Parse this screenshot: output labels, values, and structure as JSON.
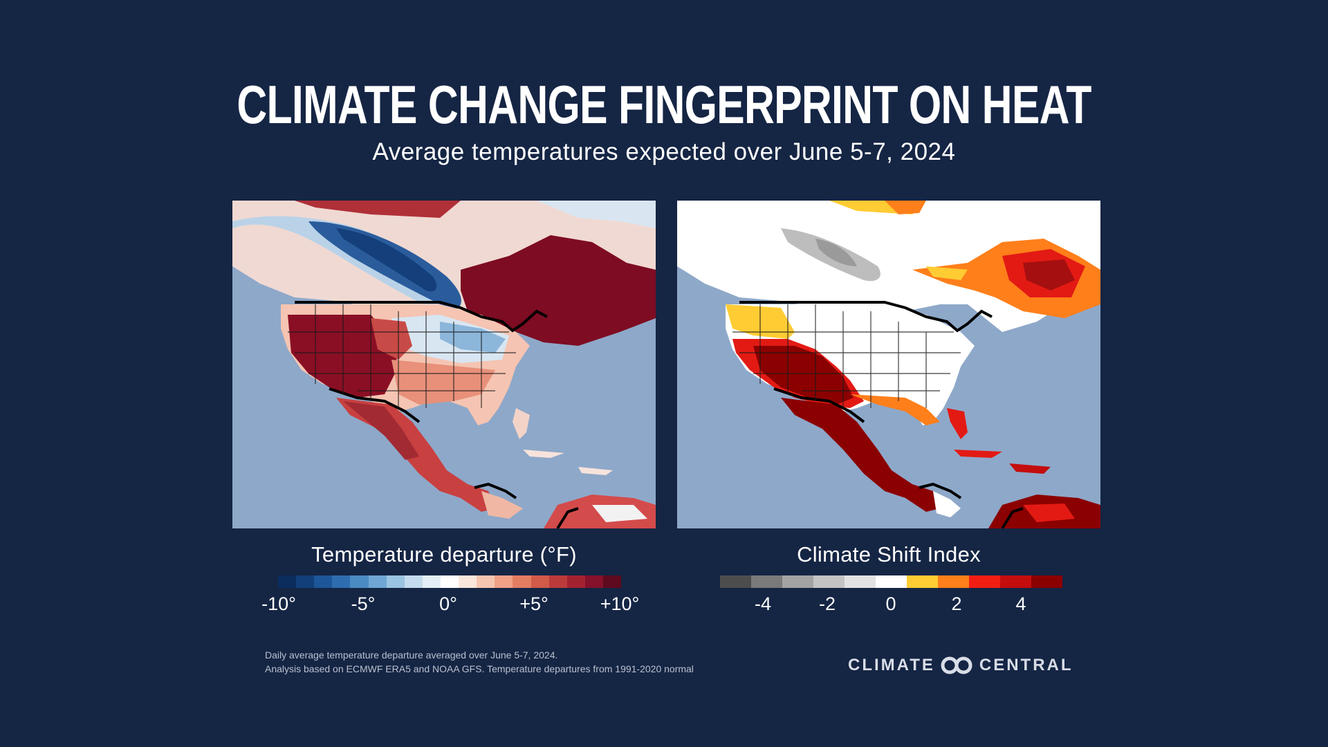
{
  "header": {
    "title": "Climate Change Fingerprint on Heat",
    "subtitle": "Average temperatures expected over June 5-7, 2024"
  },
  "maps": [
    {
      "legend_title": "Temperature departure (°F)",
      "ticks": [
        "-10°",
        "-5°",
        "0°",
        "+5°",
        "+10°"
      ],
      "scale_colors": [
        "#0a2d5e",
        "#123f7a",
        "#1d5699",
        "#2d6db0",
        "#4b8bc4",
        "#6fa6d3",
        "#9bc3e2",
        "#c3dcee",
        "#e4eef6",
        "#ffffff",
        "#fbe6dc",
        "#f6c5b0",
        "#efa286",
        "#e27d62",
        "#d15a49",
        "#bc3a3a",
        "#a32232",
        "#85112a",
        "#5e0a1f"
      ]
    },
    {
      "legend_title": "Climate Shift Index",
      "ticks": [
        "-4",
        "-2",
        "0",
        "2",
        "4"
      ],
      "scale_colors": [
        "#4d4d4d",
        "#7a7a7a",
        "#a3a3a3",
        "#c4c4c4",
        "#e2e2e2",
        "#ffffff",
        "#ffcc33",
        "#ff7f1a",
        "#f21e14",
        "#c40d0d",
        "#8b0000"
      ]
    }
  ],
  "footnote": {
    "line1": "Daily average temperature departure averaged over June 5-7, 2024.",
    "line2": "Analysis based on ECMWF ERA5 and NOAA GFS. Temperature departures from 1991-2020 normal"
  },
  "logo": {
    "left_text": "CLIMATE",
    "right_text": "CENTRAL"
  }
}
